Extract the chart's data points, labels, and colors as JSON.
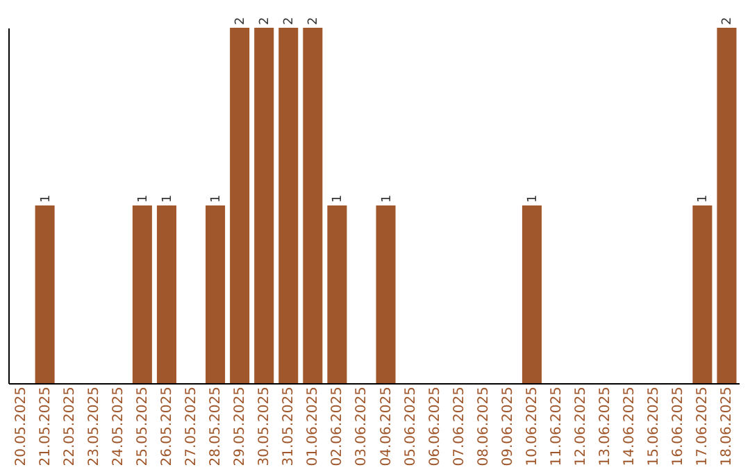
{
  "chart_data": {
    "type": "bar",
    "categories": [
      "20.05.2025",
      "21.05.2025",
      "22.05.2025",
      "23.05.2025",
      "24.05.2025",
      "25.05.2025",
      "26.05.2025",
      "27.05.2025",
      "28.05.2025",
      "29.05.2025",
      "30.05.2025",
      "31.05.2025",
      "01.06.2025",
      "02.06.2025",
      "03.06.2025",
      "04.06.2025",
      "05.06.2025",
      "06.06.2025",
      "07.06.2025",
      "08.06.2025",
      "09.06.2025",
      "10.06.2025",
      "11.06.2025",
      "12.06.2025",
      "13.06.2025",
      "14.06.2025",
      "15.06.2025",
      "16.06.2025",
      "17.06.2025",
      "18.06.2025"
    ],
    "values": [
      0,
      1,
      0,
      0,
      0,
      1,
      1,
      0,
      1,
      2,
      2,
      2,
      2,
      1,
      0,
      1,
      0,
      0,
      0,
      0,
      0,
      1,
      0,
      0,
      0,
      0,
      0,
      0,
      1,
      2
    ],
    "value_labels": [
      null,
      "1",
      null,
      null,
      null,
      "1",
      "1",
      null,
      "1",
      "2",
      "2",
      "2",
      "2",
      "1",
      null,
      "1",
      null,
      null,
      null,
      null,
      null,
      "1",
      null,
      null,
      null,
      null,
      null,
      null,
      "1",
      "2"
    ],
    "color": "#a0572b",
    "ylim": [
      0,
      2
    ],
    "tick_labels": "x",
    "grid": false
  }
}
